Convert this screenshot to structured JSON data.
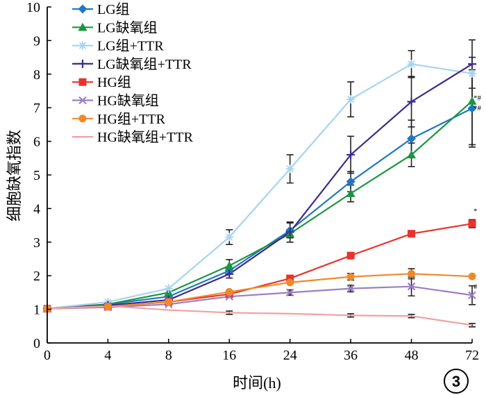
{
  "chart_data": {
    "type": "line",
    "title": "",
    "xlabel": "时间(h)",
    "ylabel": "细胞缺氧指数",
    "categories": [
      "0",
      "4",
      "8",
      "16",
      "24",
      "36",
      "48",
      "72"
    ],
    "y_ticks": [
      "0",
      "1",
      "2",
      "3",
      "4",
      "5",
      "6",
      "7",
      "8",
      "9",
      "10"
    ],
    "ylim": [
      0,
      10
    ],
    "grid": false,
    "legend_position": "top-left",
    "corner_label": "3",
    "series": [
      {
        "name": "LG组",
        "color": "#1f77c4",
        "marker": "diamond",
        "values": [
          1.02,
          1.15,
          1.38,
          2.15,
          3.35,
          4.8,
          6.08,
          6.98
        ],
        "errors": [
          0,
          0,
          0,
          0,
          0.22,
          0.3,
          0.55,
          1.15
        ]
      },
      {
        "name": "LG缺氧组",
        "color": "#1a9641",
        "marker": "triangle",
        "values": [
          1.02,
          1.15,
          1.5,
          2.3,
          3.25,
          4.45,
          5.6,
          7.2
        ],
        "errors": [
          0,
          0,
          0,
          0.18,
          0.12,
          0.25,
          0.35,
          1.3
        ]
      },
      {
        "name": "LG组+TTR",
        "color": "#a8d4f0",
        "marker": "asterisk",
        "values": [
          1.02,
          1.22,
          1.62,
          3.15,
          5.18,
          7.25,
          8.3,
          8.02
        ],
        "errors": [
          0,
          0,
          0,
          0.22,
          0.42,
          0.52,
          0.4,
          0
        ]
      },
      {
        "name": "LG缺氧组+TTR",
        "color": "#3b2a8a",
        "marker": "plus",
        "values": [
          1.02,
          1.12,
          1.28,
          2.05,
          3.3,
          5.6,
          7.18,
          8.3
        ],
        "errors": [
          0,
          0,
          0,
          0.12,
          0.3,
          0.55,
          0.75,
          0.72
        ]
      },
      {
        "name": "HG组",
        "color": "#e8332b",
        "marker": "square",
        "values": [
          1.02,
          1.08,
          1.22,
          1.45,
          1.92,
          2.6,
          3.25,
          3.55
        ],
        "errors": [
          0,
          0,
          0,
          0,
          0,
          0,
          0,
          0.12
        ]
      },
      {
        "name": "HG缺氧组",
        "color": "#9b7fc4",
        "marker": "cross",
        "values": [
          1.02,
          1.06,
          1.15,
          1.38,
          1.5,
          1.62,
          1.68,
          1.42
        ],
        "errors": [
          0,
          0,
          0,
          0,
          0.08,
          0.1,
          0.28,
          0.28
        ]
      },
      {
        "name": "HG组+TTR",
        "color": "#f0892a",
        "marker": "circle",
        "values": [
          1.02,
          1.08,
          1.22,
          1.52,
          1.8,
          1.97,
          2.06,
          1.98
        ],
        "errors": [
          0,
          0,
          0,
          0,
          0,
          0.1,
          0.15,
          0
        ]
      },
      {
        "name": "HG缺氧组+TTR",
        "color": "#f2a0a0",
        "marker": "none",
        "values": [
          1.02,
          1.1,
          0.98,
          0.9,
          0.87,
          0.82,
          0.8,
          0.53
        ],
        "errors": [
          0,
          0,
          0,
          0.05,
          0,
          0.05,
          0.05,
          0.05
        ]
      }
    ],
    "annotations": [
      {
        "text": "*#",
        "category": "72",
        "y": 7.22
      },
      {
        "text": "*#",
        "category": "72",
        "y": 6.92
      },
      {
        "text": "*",
        "category": "72",
        "y": 3.85
      },
      {
        "text": "#",
        "category": "72",
        "y": 1.6
      }
    ]
  }
}
